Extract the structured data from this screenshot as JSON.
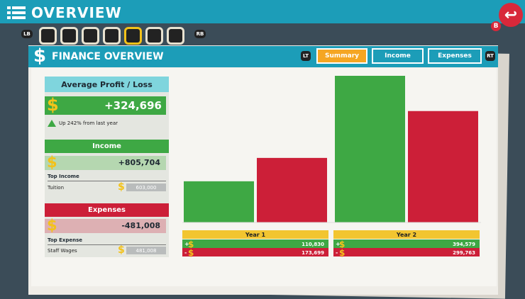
{
  "header": {
    "title": "OVERVIEW",
    "back_button": "B"
  },
  "tabs_row": {
    "left": "LB",
    "right": "RB"
  },
  "panel": {
    "title": "FINANCE OVERVIEW",
    "left_trigger": "LT",
    "right_trigger": "RT",
    "tabs": [
      "Summary",
      "Income",
      "Expenses"
    ]
  },
  "summary": {
    "title": "Average Profit / Loss",
    "profit": "+324,696",
    "change": "Up 242% from last year",
    "income": {
      "title": "Income",
      "total": "+805,704",
      "top_label": "Top Income",
      "top_name": "Tuition",
      "top_value": "603,000"
    },
    "expenses": {
      "title": "Expenses",
      "total": "-481,008",
      "top_label": "Top Expense",
      "top_name": "Staff Wages",
      "top_value": "481,008"
    }
  },
  "chart": {
    "categories": [
      "Year 1",
      "Year 2"
    ],
    "series": [
      {
        "color": "#3ea844",
        "values": [
          110830,
          394579
        ],
        "value_labels": [
          "110,830",
          "394,579"
        ]
      },
      {
        "color": "#cc1f38",
        "values": [
          173699,
          299763
        ],
        "value_labels": [
          "173,699",
          "299,763"
        ]
      }
    ]
  }
}
